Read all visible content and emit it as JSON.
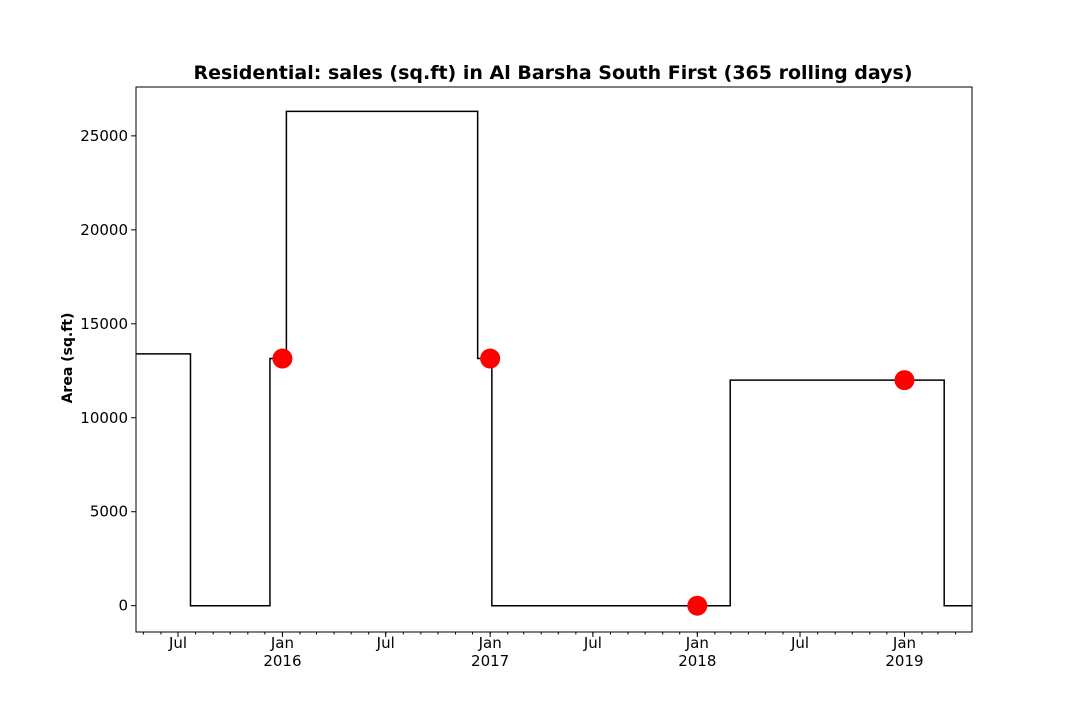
{
  "chart_data": {
    "type": "line",
    "title": "Residential: sales (sq.ft) in Al Barsha South First (365 rolling days)",
    "xlabel": "",
    "ylabel": "Area (sq.ft)",
    "xlim": [
      "2015-04-18",
      "2019-04-30"
    ],
    "ylim": [
      -1400,
      27600
    ],
    "yticks": [
      0,
      5000,
      10000,
      15000,
      20000,
      25000
    ],
    "xticks": [
      {
        "date": "2015-07-01",
        "label": "Jul",
        "sub": ""
      },
      {
        "date": "2016-01-01",
        "label": "Jan",
        "sub": "2016"
      },
      {
        "date": "2016-07-01",
        "label": "Jul",
        "sub": ""
      },
      {
        "date": "2017-01-01",
        "label": "Jan",
        "sub": "2017"
      },
      {
        "date": "2017-07-01",
        "label": "Jul",
        "sub": ""
      },
      {
        "date": "2018-01-01",
        "label": "Jan",
        "sub": "2018"
      },
      {
        "date": "2018-07-01",
        "label": "Jul",
        "sub": ""
      },
      {
        "date": "2019-01-01",
        "label": "Jan",
        "sub": "2019"
      }
    ],
    "series": [
      {
        "style": "step",
        "color": "#000000",
        "points": [
          {
            "x": "2015-04-18",
            "y": 13400
          },
          {
            "x": "2015-07-23",
            "y": 13400
          },
          {
            "x": "2015-07-23",
            "y": 0
          },
          {
            "x": "2015-12-10",
            "y": 0
          },
          {
            "x": "2015-12-10",
            "y": 13150
          },
          {
            "x": "2016-01-08",
            "y": 13150
          },
          {
            "x": "2016-01-08",
            "y": 26300
          },
          {
            "x": "2016-12-10",
            "y": 26300
          },
          {
            "x": "2016-12-10",
            "y": 13150
          },
          {
            "x": "2017-01-04",
            "y": 13150
          },
          {
            "x": "2017-01-04",
            "y": 0
          },
          {
            "x": "2018-02-28",
            "y": 0
          },
          {
            "x": "2018-02-28",
            "y": 12000
          },
          {
            "x": "2019-03-12",
            "y": 12000
          },
          {
            "x": "2019-03-12",
            "y": 0
          },
          {
            "x": "2019-04-30",
            "y": 0
          }
        ]
      },
      {
        "style": "markers",
        "color": "#ff0000",
        "points": [
          {
            "x": "2016-01-01",
            "y": 13150
          },
          {
            "x": "2017-01-01",
            "y": 13150
          },
          {
            "x": "2018-01-01",
            "y": 0
          },
          {
            "x": "2019-01-01",
            "y": 12000
          }
        ]
      }
    ],
    "grid": false,
    "legend": "none"
  }
}
